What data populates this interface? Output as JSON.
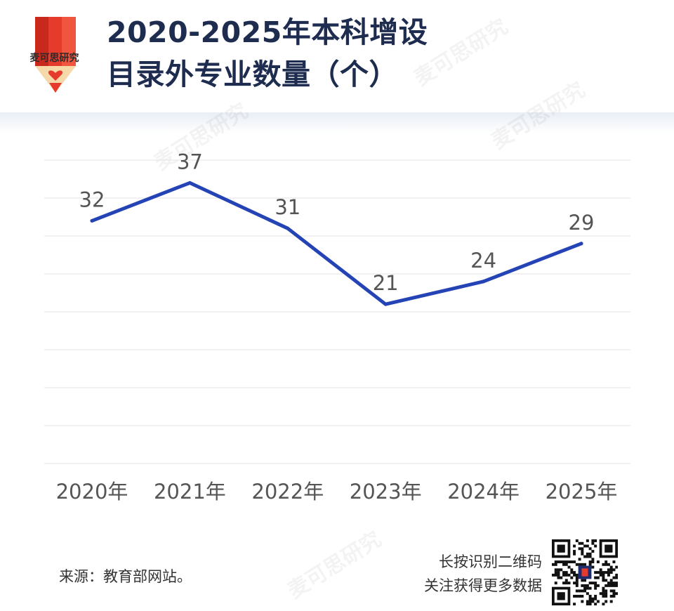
{
  "brand": {
    "logo_text": "麦可思研究",
    "watermark": "麦可思研究"
  },
  "header": {
    "title_line1": "2020-2025年本科增设",
    "title_line2": "目录外专业数量（个）"
  },
  "footer": {
    "source": "来源：教育部网站。",
    "qr_line1": "长按识别二维码",
    "qr_line2": "关注获得更多数据"
  },
  "colors": {
    "line": "#2443b5",
    "title": "#1d2c4f",
    "logo_red": "#e53b2c"
  },
  "chart_data": {
    "type": "line",
    "title": "2020-2025年本科增设目录外专业数量（个）",
    "xlabel": "",
    "ylabel": "",
    "categories": [
      "2020年",
      "2021年",
      "2022年",
      "2023年",
      "2024年",
      "2025年"
    ],
    "values": [
      32,
      37,
      31,
      21,
      24,
      29
    ],
    "data_labels": [
      "32",
      "37",
      "31",
      "21",
      "24",
      "29"
    ],
    "ylim": [
      0,
      45
    ],
    "grid": true,
    "legend": "none"
  }
}
